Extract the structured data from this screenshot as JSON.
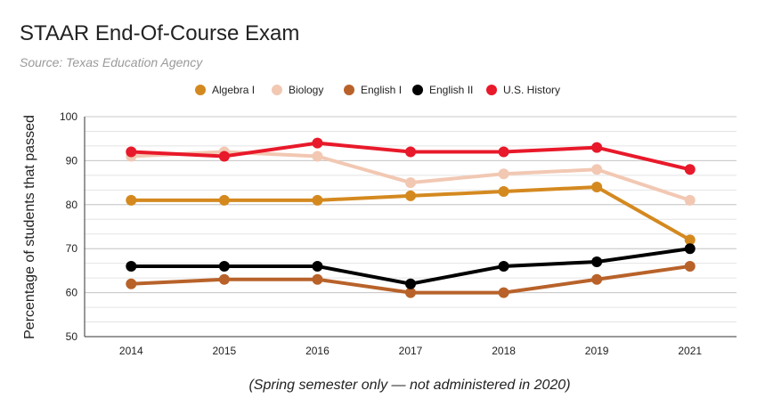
{
  "chart_data": {
    "type": "line",
    "title": "STAAR End-Of-Course Exam",
    "subtitle": "Source: Texas Education Agency",
    "xlabel": "(Spring semester only — not administered in 2020)",
    "ylabel": "Percentage of students that passed",
    "categories": [
      "2014",
      "2015",
      "2016",
      "2017",
      "2018",
      "2019",
      "2021"
    ],
    "ylim": [
      50,
      100
    ],
    "yticks": [
      50,
      60,
      70,
      80,
      90,
      100
    ],
    "grid": true,
    "legend": "top",
    "series": [
      {
        "name": "Algebra I",
        "color": "#d4891f",
        "values": [
          81,
          81,
          81,
          82,
          83,
          84,
          72
        ]
      },
      {
        "name": "Biology",
        "color": "#f2c8b3",
        "values": [
          91,
          92,
          91,
          85,
          87,
          88,
          81
        ]
      },
      {
        "name": "English I",
        "color": "#b8622a",
        "values": [
          62,
          63,
          63,
          60,
          60,
          63,
          66
        ]
      },
      {
        "name": "English II",
        "color": "#000000",
        "values": [
          66,
          66,
          66,
          62,
          66,
          67,
          70
        ]
      },
      {
        "name": "U.S. History",
        "color": "#e8192a",
        "values": [
          92,
          91,
          94,
          92,
          92,
          93,
          88
        ]
      }
    ]
  }
}
